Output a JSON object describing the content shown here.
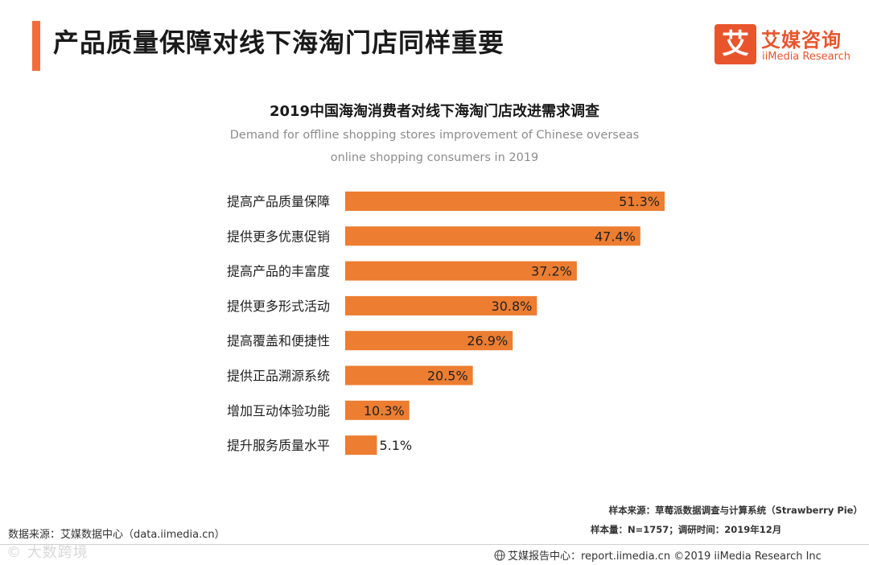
{
  "header": {
    "title": "产品质量保障对线下海淘门店同样重要"
  },
  "logo": {
    "glyph": "艾",
    "name_cn": "艾媒咨询",
    "name_en": "iiMedia Research"
  },
  "colors": {
    "accent": "#f26b3a",
    "bar": "#ed7d31",
    "logo": "#e8552d"
  },
  "chart_data": {
    "type": "bar",
    "orientation": "horizontal",
    "title": "2019中国海淘消费者对线下海淘门店改进需求调查",
    "subtitle": "Demand for offline shopping stores improvement of Chinese overseas online shopping consumers in 2019",
    "categories": [
      "提高产品质量保障",
      "提供更多优惠促销",
      "提高产品的丰富度",
      "提供更多形式活动",
      "提高覆盖和便捷性",
      "提供正品溯源系统",
      "增加互动体验功能",
      "提升服务质量水平"
    ],
    "values": [
      51.3,
      47.4,
      37.2,
      30.8,
      26.9,
      20.5,
      10.3,
      5.1
    ],
    "labels": [
      "51.3%",
      "47.4%",
      "37.2%",
      "30.8%",
      "26.9%",
      "20.5%",
      "10.3%",
      "5.1%"
    ],
    "unit": "%",
    "xlim": [
      0,
      51.3
    ]
  },
  "footer": {
    "data_source": "数据来源：艾媒数据中心（data.iimedia.cn）",
    "sample_source": "样本来源：草莓派数据调查与计算系统（Strawberry Pie）",
    "sample_size": "样本量：N=1757；调研时间：2019年12月",
    "report_center": "艾媒报告中心：report.iimedia.cn  ©2019  iiMedia Research  Inc",
    "watermark": "© 大数跨境"
  }
}
